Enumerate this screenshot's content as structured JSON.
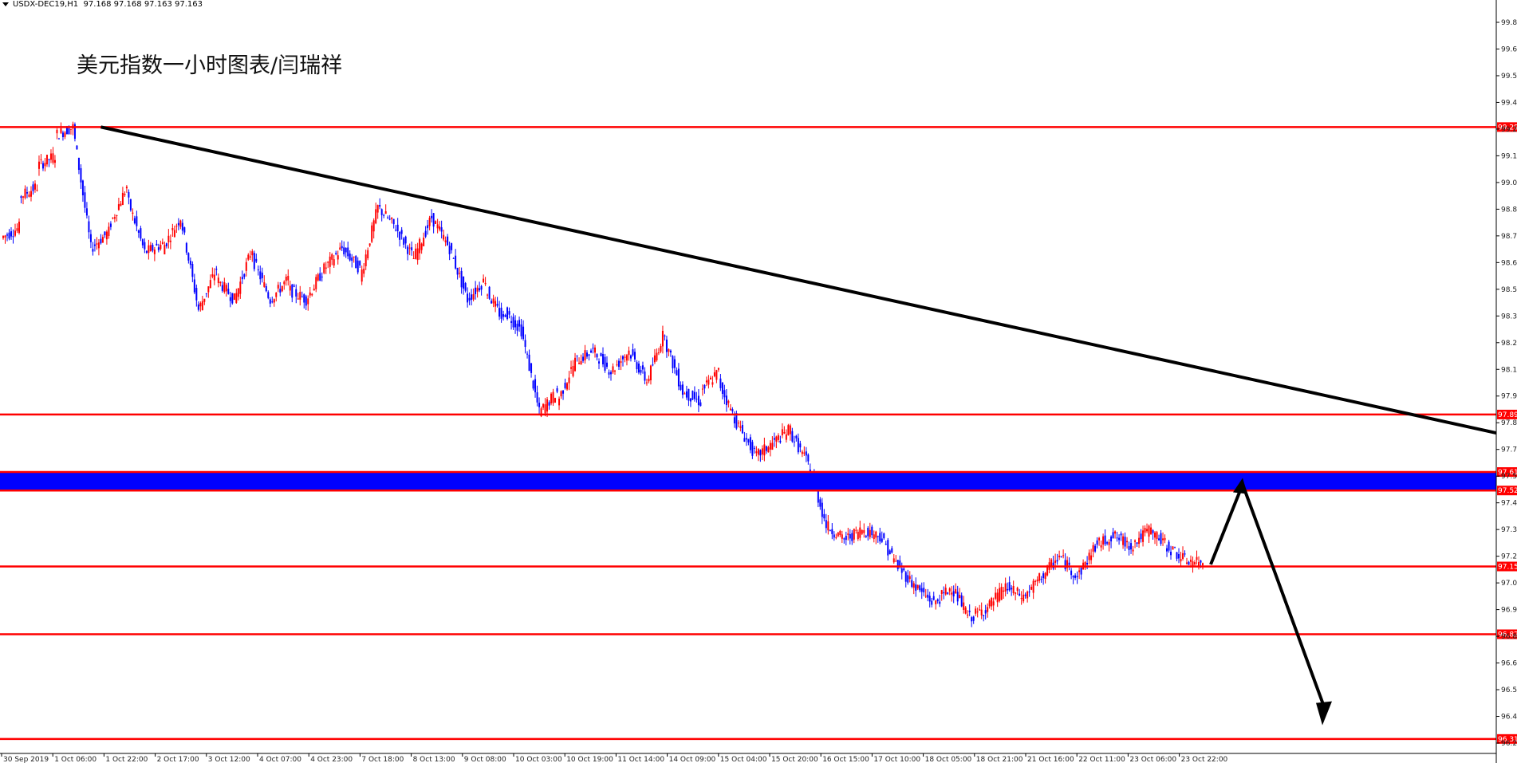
{
  "header": {
    "symbol": "USDX-DEC19,H1",
    "ohlc": "97.168 97.168 97.163 97.163"
  },
  "title": "美元指数一小时图表/闫瑞祥",
  "colors": {
    "up_candle": "#ff0000",
    "down_candle": "#0000ff",
    "level_line": "#ff0000",
    "zone_fill": "#0000ff",
    "trendline": "#000000",
    "background": "#ffffff"
  },
  "chart_data": {
    "type": "candlestick",
    "instrument": "USDX-DEC19",
    "timeframe": "H1",
    "y_ticks": [
      99.8,
      99.67,
      99.54,
      99.41,
      99.28,
      99.15,
      99.02,
      98.89,
      98.76,
      98.63,
      98.5,
      98.37,
      98.24,
      98.11,
      97.98,
      97.85,
      97.72,
      97.59,
      97.46,
      97.33,
      97.2,
      97.07,
      96.94,
      96.81,
      96.68,
      96.55,
      96.42,
      96.29
    ],
    "y_tick_labels": [
      "99.800",
      "99.670",
      "99.540",
      "99.410",
      "99.280",
      "99.150",
      "99.020",
      "98.890",
      "98.760",
      "98.630",
      "98.500",
      "98.370",
      "98.240",
      "98.110",
      "97.980",
      "97.850",
      "97.720",
      "97.590",
      "97.460",
      "97.330",
      "97.200",
      "97.070",
      "96.940",
      "96.810",
      "96.680",
      "96.550",
      "96.420",
      "96.290"
    ],
    "x_tick_labels": [
      "30 Sep 2019",
      "1 Oct 06:00",
      "1 Oct 22:00",
      "2 Oct 17:00",
      "3 Oct 12:00",
      "4 Oct 07:00",
      "4 Oct 23:00",
      "7 Oct 18:00",
      "8 Oct 13:00",
      "9 Oct 08:00",
      "10 Oct 03:00",
      "10 Oct 19:00",
      "11 Oct 14:00",
      "14 Oct 09:00",
      "15 Oct 04:00",
      "15 Oct 20:00",
      "16 Oct 15:00",
      "17 Oct 10:00",
      "18 Oct 05:00",
      "18 Oct 21:00",
      "21 Oct 16:00",
      "22 Oct 11:00",
      "23 Oct 06:00",
      "23 Oct 22:00"
    ],
    "horizontal_levels": [
      {
        "value": 99.29,
        "label": "99.290"
      },
      {
        "value": 97.89,
        "label": "97.890"
      },
      {
        "value": 97.61,
        "label": "97.610"
      },
      {
        "value": 97.52,
        "label": "97.520"
      },
      {
        "value": 97.15,
        "label": "97.150"
      },
      {
        "value": 96.82,
        "label": "96.820"
      },
      {
        "value": 96.31,
        "label": "96.310"
      }
    ],
    "resistance_zone": {
      "from": 97.52,
      "to": 97.61
    },
    "trendline": {
      "from_bar": 1,
      "from_price": 99.29,
      "to_bar": "end",
      "to_price": 97.8
    },
    "projection_path": [
      97.16,
      97.55,
      96.4
    ],
    "price_path": [
      [
        98.75,
        98.8
      ],
      [
        98.95,
        99.0
      ],
      [
        99.1,
        99.15
      ],
      [
        99.25,
        99.29
      ],
      [
        99.29,
        98.7
      ],
      [
        98.7,
        98.78
      ],
      [
        98.8,
        99.0
      ],
      [
        98.95,
        98.68
      ],
      [
        98.68,
        98.72
      ],
      [
        98.7,
        98.85
      ],
      [
        98.85,
        98.4
      ],
      [
        98.4,
        98.6
      ],
      [
        98.55,
        98.45
      ],
      [
        98.45,
        98.7
      ],
      [
        98.65,
        98.45
      ],
      [
        98.45,
        98.55
      ],
      [
        98.5,
        98.45
      ],
      [
        98.45,
        98.6
      ],
      [
        98.6,
        98.7
      ],
      [
        98.7,
        98.6
      ],
      [
        98.55,
        98.9
      ],
      [
        98.9,
        98.8
      ],
      [
        98.8,
        98.65
      ],
      [
        98.65,
        98.85
      ],
      [
        98.85,
        98.7
      ],
      [
        98.7,
        98.45
      ],
      [
        98.45,
        98.55
      ],
      [
        98.5,
        98.35
      ],
      [
        98.4,
        98.3
      ],
      [
        98.3,
        97.9
      ],
      [
        97.9,
        98.0
      ],
      [
        97.95,
        98.15
      ],
      [
        98.15,
        98.2
      ],
      [
        98.2,
        98.1
      ],
      [
        98.1,
        98.2
      ],
      [
        98.2,
        98.05
      ],
      [
        98.05,
        98.3
      ],
      [
        98.25,
        98.0
      ],
      [
        98.0,
        97.95
      ],
      [
        98.0,
        98.1
      ],
      [
        98.05,
        97.85
      ],
      [
        97.85,
        97.7
      ],
      [
        97.68,
        97.75
      ],
      [
        97.75,
        97.82
      ],
      [
        97.8,
        97.65
      ],
      [
        97.65,
        97.35
      ],
      [
        97.35,
        97.28
      ],
      [
        97.28,
        97.33
      ],
      [
        97.33,
        97.3
      ],
      [
        97.3,
        97.15
      ],
      [
        97.15,
        97.05
      ],
      [
        97.05,
        96.97
      ],
      [
        96.97,
        97.05
      ],
      [
        97.05,
        96.9
      ],
      [
        96.9,
        96.95
      ],
      [
        96.95,
        97.05
      ],
      [
        97.05,
        97.0
      ],
      [
        97.0,
        97.1
      ],
      [
        97.1,
        97.2
      ],
      [
        97.2,
        97.1
      ],
      [
        97.1,
        97.25
      ],
      [
        97.25,
        97.3
      ],
      [
        97.3,
        97.25
      ],
      [
        97.25,
        97.33
      ],
      [
        97.33,
        97.25
      ],
      [
        97.25,
        97.18
      ],
      [
        97.18,
        97.163
      ]
    ]
  }
}
